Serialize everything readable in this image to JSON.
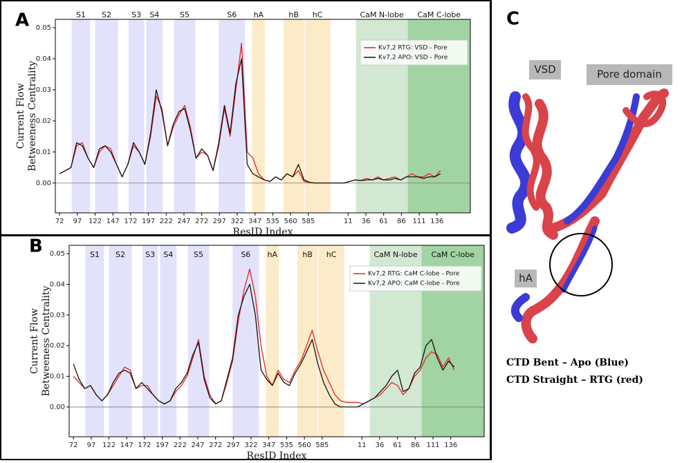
{
  "chart_data": [
    {
      "type": "line",
      "panel": "A",
      "ylabel": [
        "Current Flow",
        "Betweeness Centrality"
      ],
      "xlabel": "ResID Index",
      "xlim": [
        -6,
        578
      ],
      "ylim": [
        -0.0096,
        0.0527
      ],
      "yticks": [
        {
          "value": 0,
          "label": "0.00"
        },
        {
          "value": 0.01,
          "label": "0.01"
        },
        {
          "value": 0.02,
          "label": "0.02"
        },
        {
          "value": 0.03,
          "label": "0.03"
        },
        {
          "value": 0.04,
          "label": "0.04"
        },
        {
          "value": 0.05,
          "label": "0.05"
        }
      ],
      "xticks": [
        {
          "value": 0,
          "label": "72"
        },
        {
          "value": 25,
          "label": "97"
        },
        {
          "value": 50,
          "label": "122"
        },
        {
          "value": 75,
          "label": "147"
        },
        {
          "value": 100,
          "label": "172"
        },
        {
          "value": 125,
          "label": "197"
        },
        {
          "value": 150,
          "label": "222"
        },
        {
          "value": 175,
          "label": "247"
        },
        {
          "value": 200,
          "label": "272"
        },
        {
          "value": 225,
          "label": "297"
        },
        {
          "value": 250,
          "label": "322"
        },
        {
          "value": 275,
          "label": "347"
        },
        {
          "value": 300,
          "label": "535"
        },
        {
          "value": 325,
          "label": "560"
        },
        {
          "value": 350,
          "label": "585"
        },
        {
          "value": 406,
          "label": "11"
        },
        {
          "value": 431,
          "label": "36"
        },
        {
          "value": 456,
          "label": "61"
        },
        {
          "value": 481,
          "label": "86"
        },
        {
          "value": 506,
          "label": "111"
        },
        {
          "value": 531,
          "label": "136"
        }
      ],
      "regions": [
        {
          "label": "S1",
          "start": 17,
          "end": 43,
          "color": "#e2e2fb"
        },
        {
          "label": "S2",
          "start": 50,
          "end": 82,
          "color": "#e2e2fb"
        },
        {
          "label": "S3",
          "start": 97,
          "end": 119,
          "color": "#e2e2fb"
        },
        {
          "label": "S4",
          "start": 122,
          "end": 145,
          "color": "#e2e2fb"
        },
        {
          "label": "S5",
          "start": 161,
          "end": 191,
          "color": "#e2e2fb"
        },
        {
          "label": "S6",
          "start": 224,
          "end": 261,
          "color": "#e2e2fb"
        },
        {
          "label": "hA",
          "start": 271,
          "end": 289,
          "color": "#fcebc8"
        },
        {
          "label": "hB",
          "start": 315,
          "end": 344,
          "color": "#fcebc8"
        },
        {
          "label": "hC",
          "start": 345,
          "end": 381,
          "color": "#fcebc8"
        },
        {
          "label": "CaM N-lobe",
          "start": 417,
          "end": 490,
          "color": "#d2e8d2"
        },
        {
          "label": "CaM C-lobe",
          "start": 490,
          "end": 578,
          "color": "#a2d3a2"
        }
      ],
      "legend": "upper right",
      "x": [
        0,
        8,
        16,
        24,
        32,
        40,
        48,
        56,
        64,
        72,
        80,
        88,
        96,
        104,
        112,
        120,
        128,
        136,
        144,
        152,
        160,
        168,
        176,
        184,
        192,
        200,
        208,
        216,
        224,
        232,
        240,
        248,
        256,
        264,
        272,
        280,
        288,
        296,
        304,
        312,
        320,
        328,
        336,
        344,
        352,
        360,
        368,
        376,
        384,
        392,
        400,
        408,
        416,
        424,
        432,
        440,
        448,
        456,
        464,
        472,
        480,
        488,
        496,
        504,
        512,
        520,
        528,
        536
      ],
      "series": [
        {
          "name": "Kv7,2  RTG: VSD - Pore",
          "color": "#e8221c",
          "values": [
            0.003,
            0.004,
            0.005,
            0.012,
            0.013,
            0.008,
            0.005,
            0.01,
            0.012,
            0.011,
            0.006,
            0.002,
            0.006,
            0.012,
            0.01,
            0.006,
            0.015,
            0.028,
            0.024,
            0.012,
            0.018,
            0.022,
            0.025,
            0.018,
            0.008,
            0.01,
            0.009,
            0.004,
            0.012,
            0.024,
            0.015,
            0.03,
            0.045,
            0.01,
            0.008,
            0.003,
            0.001,
            0.0005,
            0.002,
            0.001,
            0.003,
            0.002,
            0.004,
            0.0005,
            0.0002,
            0,
            0,
            0,
            0,
            0,
            0,
            0.0005,
            0.001,
            0.0008,
            0.0015,
            0.001,
            0.002,
            0.001,
            0.0015,
            0.002,
            0.001,
            0.002,
            0.003,
            0.002,
            0.002,
            0.003,
            0.002,
            0.004
          ]
        },
        {
          "name": "Kv7,2  APO: VSD - Pore",
          "color": "#111111",
          "values": [
            0.003,
            0.004,
            0.005,
            0.013,
            0.012,
            0.008,
            0.005,
            0.011,
            0.012,
            0.01,
            0.006,
            0.002,
            0.006,
            0.013,
            0.01,
            0.006,
            0.016,
            0.03,
            0.023,
            0.012,
            0.019,
            0.023,
            0.024,
            0.017,
            0.008,
            0.011,
            0.009,
            0.004,
            0.013,
            0.025,
            0.016,
            0.032,
            0.04,
            0.006,
            0.003,
            0.002,
            0.001,
            0.0005,
            0.002,
            0.001,
            0.003,
            0.002,
            0.006,
            0.001,
            0.0002,
            0,
            0,
            0,
            0,
            0,
            0,
            0.0005,
            0.001,
            0.0008,
            0.001,
            0.001,
            0.0015,
            0.001,
            0.001,
            0.0015,
            0.001,
            0.002,
            0.002,
            0.002,
            0.0015,
            0.002,
            0.002,
            0.003
          ]
        }
      ]
    },
    {
      "type": "line",
      "panel": "B",
      "ylabel": [
        "Current Flow",
        "Betweeness Centrality"
      ],
      "xlabel": "ResID Index",
      "xlim": [
        -6,
        578
      ],
      "ylim": [
        -0.0097,
        0.0527
      ],
      "yticks": [
        {
          "value": 0,
          "label": "0.00"
        },
        {
          "value": 0.01,
          "label": "0.01"
        },
        {
          "value": 0.02,
          "label": "0.02"
        },
        {
          "value": 0.03,
          "label": "0.03"
        },
        {
          "value": 0.04,
          "label": "0.04"
        },
        {
          "value": 0.05,
          "label": "0.05"
        }
      ],
      "xticks": [
        {
          "value": 0,
          "label": "72"
        },
        {
          "value": 25,
          "label": "97"
        },
        {
          "value": 50,
          "label": "122"
        },
        {
          "value": 75,
          "label": "147"
        },
        {
          "value": 100,
          "label": "172"
        },
        {
          "value": 125,
          "label": "197"
        },
        {
          "value": 150,
          "label": "222"
        },
        {
          "value": 175,
          "label": "247"
        },
        {
          "value": 200,
          "label": "272"
        },
        {
          "value": 225,
          "label": "297"
        },
        {
          "value": 250,
          "label": "322"
        },
        {
          "value": 275,
          "label": "347"
        },
        {
          "value": 300,
          "label": "535"
        },
        {
          "value": 325,
          "label": "560"
        },
        {
          "value": 350,
          "label": "585"
        },
        {
          "value": 406,
          "label": "11"
        },
        {
          "value": 431,
          "label": "36"
        },
        {
          "value": 456,
          "label": "61"
        },
        {
          "value": 481,
          "label": "86"
        },
        {
          "value": 506,
          "label": "111"
        },
        {
          "value": 531,
          "label": "136"
        }
      ],
      "regions": [
        {
          "label": "S1",
          "start": 17,
          "end": 43,
          "color": "#e2e2fb"
        },
        {
          "label": "S2",
          "start": 50,
          "end": 82,
          "color": "#e2e2fb"
        },
        {
          "label": "S3",
          "start": 97,
          "end": 119,
          "color": "#e2e2fb"
        },
        {
          "label": "S4",
          "start": 122,
          "end": 145,
          "color": "#e2e2fb"
        },
        {
          "label": "S5",
          "start": 161,
          "end": 191,
          "color": "#e2e2fb"
        },
        {
          "label": "S6",
          "start": 224,
          "end": 261,
          "color": "#e2e2fb"
        },
        {
          "label": "hA",
          "start": 271,
          "end": 289,
          "color": "#fcebc8"
        },
        {
          "label": "hB",
          "start": 315,
          "end": 344,
          "color": "#fcebc8"
        },
        {
          "label": "hC",
          "start": 345,
          "end": 381,
          "color": "#fcebc8"
        },
        {
          "label": "CaM N-lobe",
          "start": 417,
          "end": 490,
          "color": "#d2e8d2"
        },
        {
          "label": "CaM C-lobe",
          "start": 490,
          "end": 578,
          "color": "#a2d3a2"
        }
      ],
      "legend": "upper right",
      "x": [
        0,
        8,
        16,
        24,
        32,
        40,
        48,
        56,
        64,
        72,
        80,
        88,
        96,
        104,
        112,
        120,
        128,
        136,
        144,
        152,
        160,
        168,
        176,
        184,
        192,
        200,
        208,
        216,
        224,
        232,
        240,
        248,
        256,
        264,
        272,
        280,
        288,
        296,
        304,
        312,
        320,
        328,
        336,
        344,
        352,
        360,
        368,
        376,
        384,
        392,
        400,
        408,
        416,
        424,
        432,
        440,
        448,
        456,
        464,
        472,
        480,
        488,
        496,
        504,
        512,
        520,
        528,
        536
      ],
      "series": [
        {
          "name": "Kv7,2  RTG: CaM C-lobe - Pore",
          "color": "#e8221c",
          "values": [
            0.01,
            0.008,
            0.006,
            0.007,
            0.004,
            0.002,
            0.004,
            0.007,
            0.01,
            0.013,
            0.012,
            0.006,
            0.007,
            0.007,
            0.004,
            0.002,
            0.001,
            0.002,
            0.005,
            0.007,
            0.01,
            0.016,
            0.022,
            0.01,
            0.004,
            0.001,
            0.002,
            0.008,
            0.015,
            0.028,
            0.038,
            0.045,
            0.036,
            0.02,
            0.01,
            0.007,
            0.012,
            0.009,
            0.008,
            0.012,
            0.015,
            0.02,
            0.025,
            0.018,
            0.012,
            0.008,
            0.004,
            0.002,
            0.0015,
            0.0015,
            0.0015,
            0.001,
            0.002,
            0.003,
            0.004,
            0.006,
            0.008,
            0.007,
            0.004,
            0.006,
            0.01,
            0.012,
            0.016,
            0.018,
            0.017,
            0.013,
            0.016,
            0.012
          ]
        },
        {
          "name": "Kv7,2  APO: CaM C-lobe - Pore",
          "color": "#111111",
          "values": [
            0.014,
            0.009,
            0.006,
            0.007,
            0.004,
            0.002,
            0.004,
            0.008,
            0.011,
            0.012,
            0.011,
            0.006,
            0.008,
            0.006,
            0.004,
            0.002,
            0.001,
            0.002,
            0.006,
            0.008,
            0.011,
            0.017,
            0.021,
            0.009,
            0.003,
            0.001,
            0.002,
            0.009,
            0.016,
            0.03,
            0.036,
            0.04,
            0.03,
            0.012,
            0.009,
            0.007,
            0.011,
            0.008,
            0.007,
            0.011,
            0.014,
            0.018,
            0.022,
            0.014,
            0.008,
            0.004,
            0.001,
            0,
            0,
            0,
            0,
            0.001,
            0.002,
            0.003,
            0.005,
            0.007,
            0.01,
            0.012,
            0.005,
            0.006,
            0.011,
            0.013,
            0.02,
            0.022,
            0.016,
            0.012,
            0.015,
            0.013
          ]
        }
      ]
    }
  ],
  "panel_c": {
    "label": "C",
    "annotations": [
      "VSD",
      "Pore domain",
      "hA"
    ],
    "caption": [
      "CTD Bent – Apo (Blue)",
      "CTD Straight – RTG (red)"
    ]
  }
}
